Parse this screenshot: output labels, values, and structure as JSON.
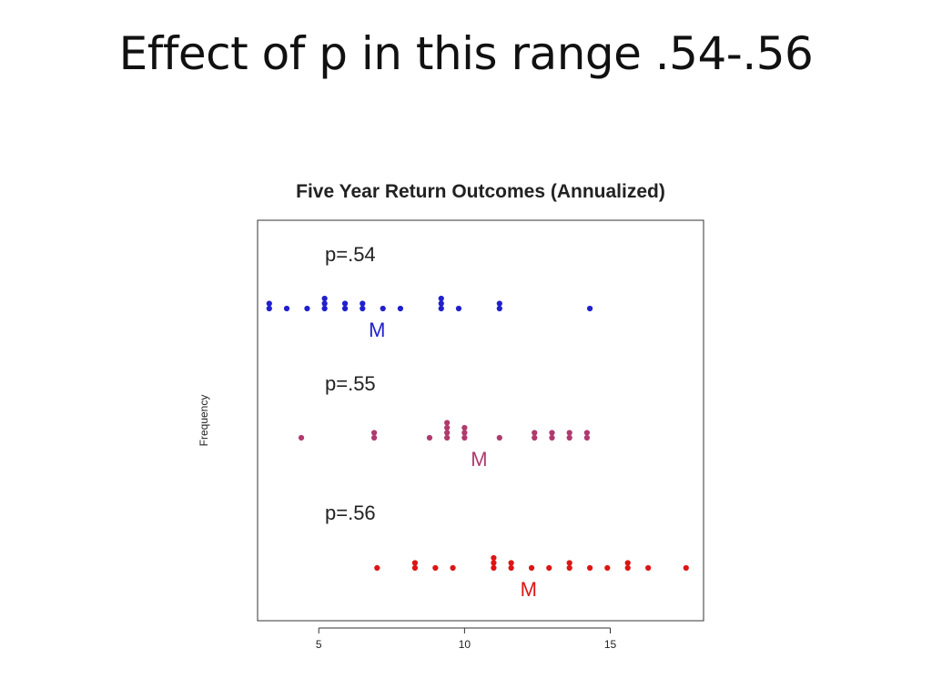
{
  "slide": {
    "title": "Effect of p in this range .54-.56"
  },
  "chart_data": {
    "type": "dot",
    "title": "Five Year Return Outcomes (Annualized)",
    "xlabel": "",
    "ylabel": "Frequency",
    "xlim": [
      2.9,
      18.2
    ],
    "xticks": [
      5,
      10,
      15
    ],
    "median_label": "M",
    "series": [
      {
        "name": "p=.54",
        "label": "p=.54",
        "color": "#2020cc",
        "median": 7.0,
        "points": [
          {
            "x": 3.3,
            "count": 2
          },
          {
            "x": 3.9,
            "count": 1
          },
          {
            "x": 4.6,
            "count": 1
          },
          {
            "x": 5.2,
            "count": 3
          },
          {
            "x": 5.9,
            "count": 2
          },
          {
            "x": 6.5,
            "count": 2
          },
          {
            "x": 7.2,
            "count": 1
          },
          {
            "x": 7.8,
            "count": 1
          },
          {
            "x": 9.2,
            "count": 3
          },
          {
            "x": 9.8,
            "count": 1
          },
          {
            "x": 11.2,
            "count": 2
          },
          {
            "x": 14.3,
            "count": 1
          }
        ]
      },
      {
        "name": "p=.55",
        "label": "p=.55",
        "color": "#b03a6e",
        "median": 10.5,
        "points": [
          {
            "x": 4.4,
            "count": 1
          },
          {
            "x": 6.9,
            "count": 2
          },
          {
            "x": 8.8,
            "count": 1
          },
          {
            "x": 9.4,
            "count": 4
          },
          {
            "x": 10.0,
            "count": 3
          },
          {
            "x": 11.2,
            "count": 1
          },
          {
            "x": 12.4,
            "count": 2
          },
          {
            "x": 13.0,
            "count": 2
          },
          {
            "x": 13.6,
            "count": 2
          },
          {
            "x": 14.2,
            "count": 2
          }
        ]
      },
      {
        "name": "p=.56",
        "label": "p=.56",
        "color": "#dd1515",
        "median": 12.2,
        "points": [
          {
            "x": 7.0,
            "count": 1
          },
          {
            "x": 8.3,
            "count": 2
          },
          {
            "x": 9.0,
            "count": 1
          },
          {
            "x": 9.6,
            "count": 1
          },
          {
            "x": 11.0,
            "count": 3
          },
          {
            "x": 11.6,
            "count": 2
          },
          {
            "x": 12.3,
            "count": 1
          },
          {
            "x": 12.9,
            "count": 1
          },
          {
            "x": 13.6,
            "count": 2
          },
          {
            "x": 14.3,
            "count": 1
          },
          {
            "x": 14.9,
            "count": 1
          },
          {
            "x": 15.6,
            "count": 2
          },
          {
            "x": 16.3,
            "count": 1
          },
          {
            "x": 17.6,
            "count": 1
          }
        ]
      }
    ]
  }
}
